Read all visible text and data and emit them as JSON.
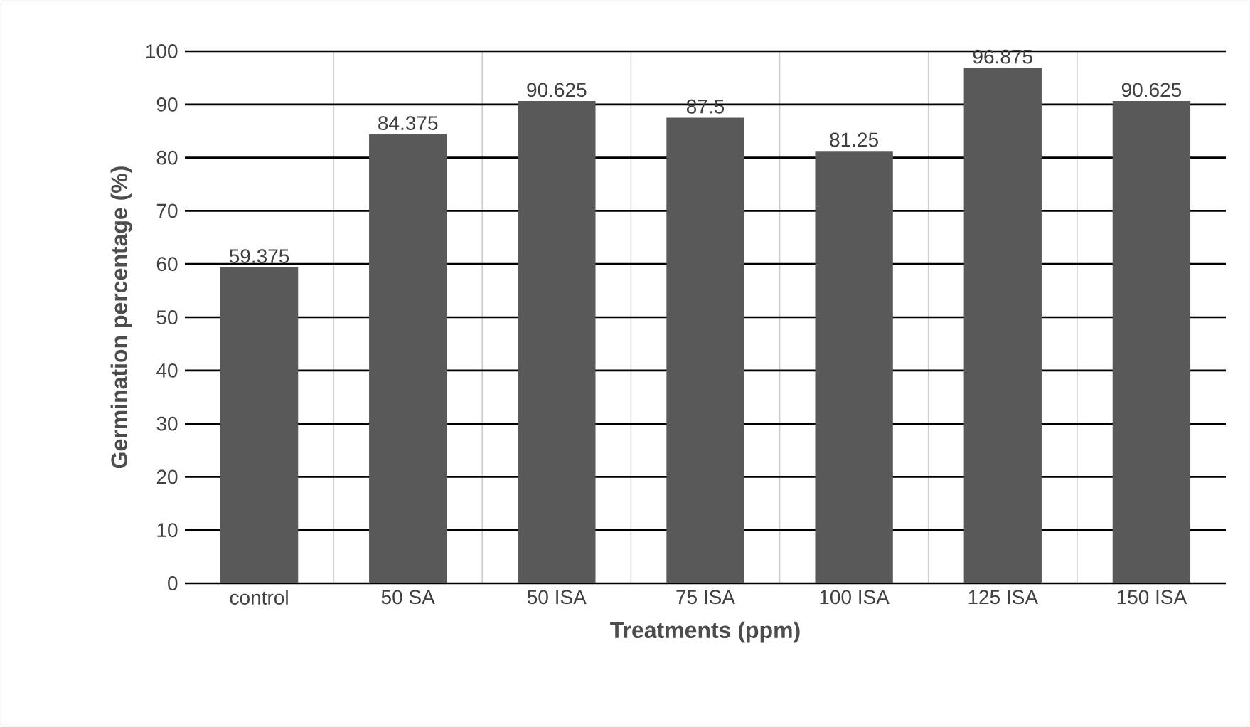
{
  "chart_data": {
    "type": "bar",
    "xlabel": "Treatments (ppm)",
    "ylabel": "Germination percentage (%)",
    "categories": [
      "control",
      "50 SA",
      "50 ISA",
      "75 ISA",
      "100 ISA",
      "125 ISA",
      "150 ISA"
    ],
    "values": [
      59.375,
      84.375,
      90.625,
      87.5,
      81.25,
      96.875,
      90.625
    ],
    "color": "#595959",
    "ylim": [
      0,
      100
    ],
    "yticks": [
      0,
      10,
      20,
      30,
      40,
      50,
      60,
      70,
      80,
      90,
      100
    ],
    "grid": true,
    "data_labels": true
  }
}
